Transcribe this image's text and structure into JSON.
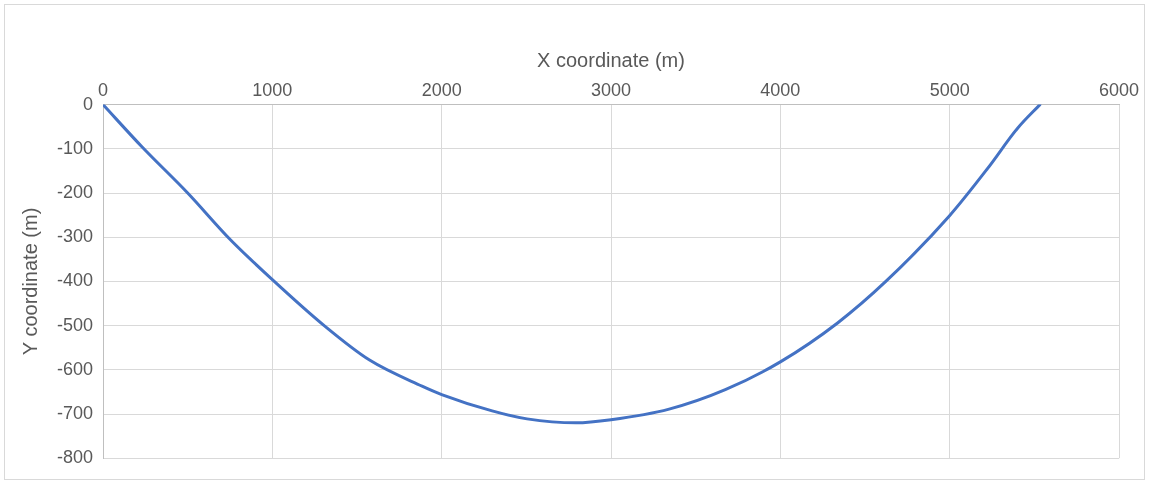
{
  "chart_data": {
    "type": "line",
    "xlabel": "X coordinate (m)",
    "ylabel": "Y coordinate (m)",
    "series": [
      {
        "color": "#4472c4",
        "x": [
          0,
          231,
          500,
          748,
          1000,
          1306,
          1574,
          1884,
          2000,
          2298,
          2504,
          2793,
          3000,
          3343,
          3675,
          4000,
          4338,
          4626,
          4998,
          5223,
          5400,
          5533
        ],
        "values": [
          0,
          -96,
          -200,
          -304,
          -396,
          -500,
          -578,
          -637,
          -656,
          -693,
          -711,
          -720,
          -713,
          -689,
          -645,
          -582,
          -494,
          -399,
          -252,
          -145,
          -54,
          0
        ]
      }
    ],
    "xlim": [
      0,
      6000
    ],
    "xticks": [
      0,
      1000,
      2000,
      3000,
      4000,
      5000,
      6000
    ],
    "ylim": [
      -800,
      0
    ],
    "yticks": [
      0,
      -100,
      -200,
      -300,
      -400,
      -500,
      -600,
      -700,
      -800
    ],
    "grid": true,
    "legend": false,
    "marker": "none",
    "line_style": "solid"
  }
}
